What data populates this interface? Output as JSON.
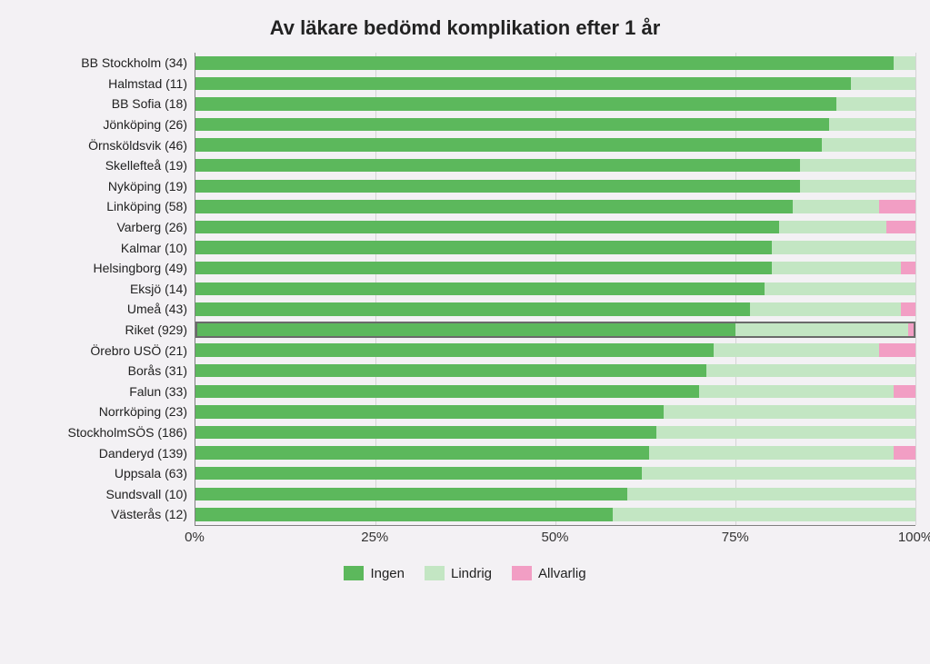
{
  "chart": {
    "type": "stacked-horizontal-bar",
    "title": "Av läkare bedömd komplikation efter 1 år",
    "title_fontsize": 22,
    "background_color": "#f3f1f4",
    "grid_color": "#c7c7c7",
    "axis_color": "#808080",
    "label_fontsize": 14,
    "tick_fontsize": 15,
    "xlim": [
      0,
      100
    ],
    "xticks": [
      0,
      25,
      50,
      75,
      100
    ],
    "xtick_labels": [
      "0%",
      "25%",
      "50%",
      "75%",
      "100%"
    ],
    "series": [
      {
        "key": "ingen",
        "label": "Ingen",
        "color": "#5cb85c"
      },
      {
        "key": "lindrig",
        "label": "Lindrig",
        "color": "#c3e6c3"
      },
      {
        "key": "allvarlig",
        "label": "Allvarlig",
        "color": "#f29ec4"
      }
    ],
    "highlight_label": "Riket (929)",
    "highlight_border_color": "#6a6a6a",
    "categories": [
      {
        "label": "BB Stockholm (34)",
        "values": {
          "ingen": 97,
          "lindrig": 3,
          "allvarlig": 0
        }
      },
      {
        "label": "Halmstad (11)",
        "values": {
          "ingen": 91,
          "lindrig": 9,
          "allvarlig": 0
        }
      },
      {
        "label": "BB Sofia (18)",
        "values": {
          "ingen": 89,
          "lindrig": 11,
          "allvarlig": 0
        }
      },
      {
        "label": "Jönköping (26)",
        "values": {
          "ingen": 88,
          "lindrig": 12,
          "allvarlig": 0
        }
      },
      {
        "label": "Örnsköldsvik (46)",
        "values": {
          "ingen": 87,
          "lindrig": 13,
          "allvarlig": 0
        }
      },
      {
        "label": "Skellefteå (19)",
        "values": {
          "ingen": 84,
          "lindrig": 16,
          "allvarlig": 0
        }
      },
      {
        "label": "Nyköping (19)",
        "values": {
          "ingen": 84,
          "lindrig": 16,
          "allvarlig": 0
        }
      },
      {
        "label": "Linköping (58)",
        "values": {
          "ingen": 83,
          "lindrig": 12,
          "allvarlig": 5
        }
      },
      {
        "label": "Varberg (26)",
        "values": {
          "ingen": 81,
          "lindrig": 15,
          "allvarlig": 4
        }
      },
      {
        "label": "Kalmar (10)",
        "values": {
          "ingen": 80,
          "lindrig": 20,
          "allvarlig": 0
        }
      },
      {
        "label": "Helsingborg (49)",
        "values": {
          "ingen": 80,
          "lindrig": 18,
          "allvarlig": 2
        }
      },
      {
        "label": "Eksjö (14)",
        "values": {
          "ingen": 79,
          "lindrig": 21,
          "allvarlig": 0
        }
      },
      {
        "label": "Umeå (43)",
        "values": {
          "ingen": 77,
          "lindrig": 21,
          "allvarlig": 2
        }
      },
      {
        "label": "Riket (929)",
        "values": {
          "ingen": 75,
          "lindrig": 24,
          "allvarlig": 1
        }
      },
      {
        "label": "Örebro USÖ (21)",
        "values": {
          "ingen": 72,
          "lindrig": 23,
          "allvarlig": 5
        }
      },
      {
        "label": "Borås (31)",
        "values": {
          "ingen": 71,
          "lindrig": 29,
          "allvarlig": 0
        }
      },
      {
        "label": "Falun (33)",
        "values": {
          "ingen": 70,
          "lindrig": 27,
          "allvarlig": 3
        }
      },
      {
        "label": "Norrköping (23)",
        "values": {
          "ingen": 65,
          "lindrig": 35,
          "allvarlig": 0
        }
      },
      {
        "label": "StockholmSÖS (186)",
        "values": {
          "ingen": 64,
          "lindrig": 36,
          "allvarlig": 0
        }
      },
      {
        "label": "Danderyd (139)",
        "values": {
          "ingen": 63,
          "lindrig": 34,
          "allvarlig": 3
        }
      },
      {
        "label": "Uppsala (63)",
        "values": {
          "ingen": 62,
          "lindrig": 38,
          "allvarlig": 0
        }
      },
      {
        "label": "Sundsvall (10)",
        "values": {
          "ingen": 60,
          "lindrig": 40,
          "allvarlig": 0
        }
      },
      {
        "label": "Västerås (12)",
        "values": {
          "ingen": 58,
          "lindrig": 42,
          "allvarlig": 0
        }
      }
    ]
  }
}
